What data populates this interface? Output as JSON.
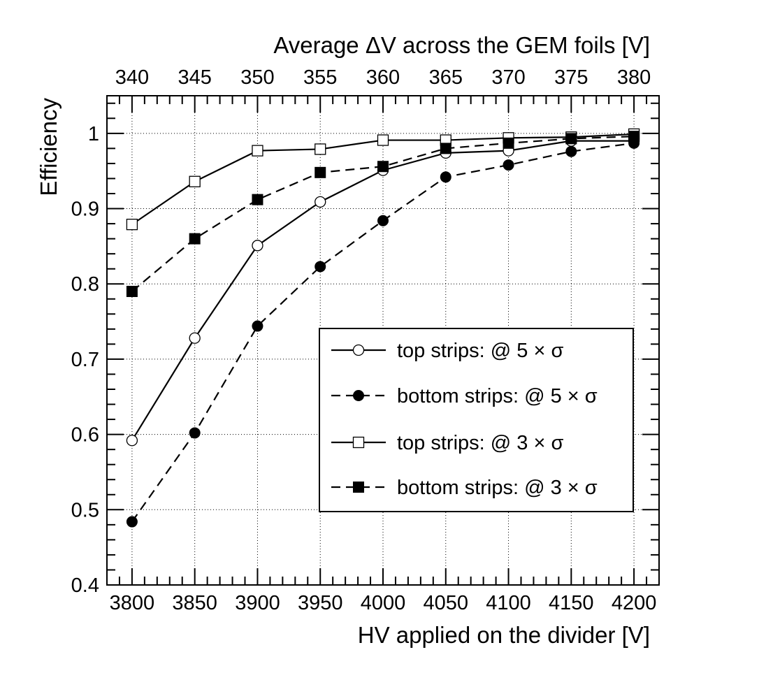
{
  "chart_data": {
    "type": "line",
    "xlabel": "HV applied on the divider [V]",
    "x2label": "Average ΔV across the GEM foils [V]",
    "ylabel": "Efficiency",
    "xlim": [
      3780,
      4220
    ],
    "ylim": [
      0.4,
      1.05
    ],
    "x_ticks": [
      3800,
      3850,
      3900,
      3950,
      4000,
      4050,
      4100,
      4150,
      4200
    ],
    "x_tick_labels": [
      "3800",
      "3850",
      "3900",
      "3950",
      "4000",
      "4050",
      "4100",
      "4150",
      "4200"
    ],
    "x2_ticks": [
      3800,
      3850,
      3900,
      3950,
      4000,
      4050,
      4100,
      4150,
      4200
    ],
    "x2_tick_labels": [
      "340",
      "345",
      "350",
      "355",
      "360",
      "365",
      "370",
      "375",
      "380"
    ],
    "y_ticks": [
      0.4,
      0.5,
      0.6,
      0.7,
      0.8,
      0.9,
      1.0
    ],
    "y_tick_labels": [
      "0.4",
      "0.5",
      "0.6",
      "0.7",
      "0.8",
      "0.9",
      "1"
    ],
    "grid": true,
    "legend_position": "center-right",
    "x": [
      3800,
      3850,
      3900,
      3950,
      4000,
      4050,
      4100,
      4150,
      4200
    ],
    "series": [
      {
        "name": "top strips: @ 5 × σ",
        "marker": "open-circle",
        "line": "solid",
        "values": [
          0.592,
          0.728,
          0.851,
          0.909,
          0.951,
          0.974,
          0.977,
          0.99,
          0.99
        ]
      },
      {
        "name": "bottom strips: @ 5 × σ",
        "marker": "filled-circle",
        "line": "dashed",
        "values": [
          0.484,
          0.602,
          0.744,
          0.823,
          0.884,
          0.942,
          0.958,
          0.976,
          0.987
        ]
      },
      {
        "name": "top strips: @ 3 × σ",
        "marker": "open-square",
        "line": "solid",
        "values": [
          0.879,
          0.936,
          0.977,
          0.979,
          0.991,
          0.991,
          0.994,
          0.995,
          0.999
        ]
      },
      {
        "name": "bottom strips: @ 3 × σ",
        "marker": "filled-square",
        "line": "dashed",
        "values": [
          0.79,
          0.86,
          0.912,
          0.948,
          0.956,
          0.98,
          0.987,
          0.993,
          0.996
        ]
      }
    ]
  }
}
